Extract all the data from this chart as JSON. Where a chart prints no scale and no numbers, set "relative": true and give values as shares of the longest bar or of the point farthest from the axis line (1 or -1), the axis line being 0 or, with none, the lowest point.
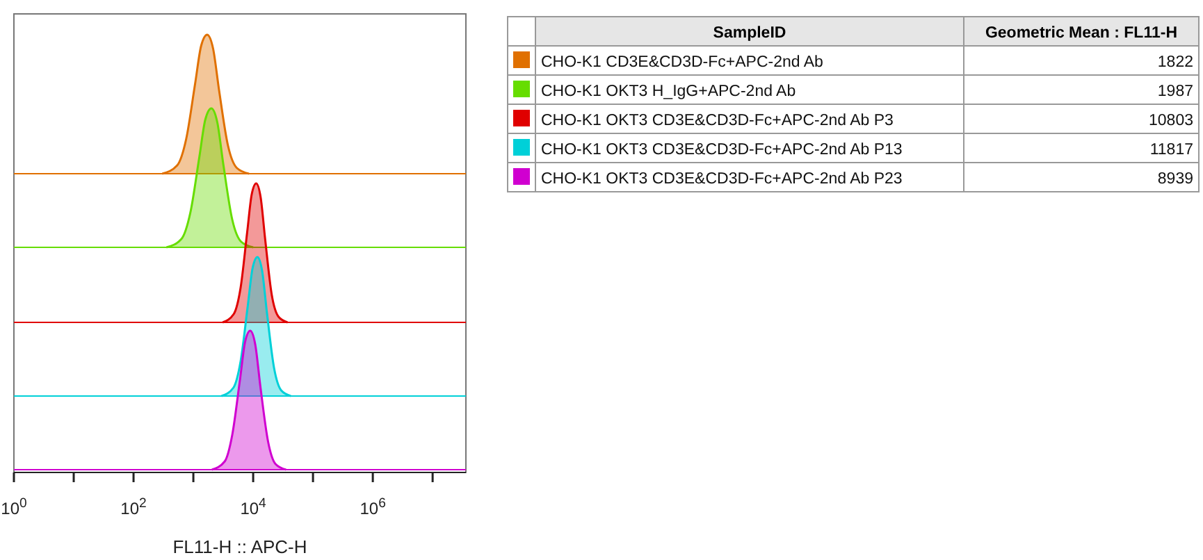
{
  "chart_data": [
    {
      "type": "area",
      "relative": true,
      "log": "x",
      "xlim": [
        1,
        36000000
      ],
      "tick_labels": false,
      "series": [
        {
          "color": "#e07000",
          "x": [
            302,
            537,
            759,
            1072,
            1349,
            1698,
            2138,
            2692,
            3802,
            5370,
            8511
          ],
          "values": [
            0,
            0.06,
            0.25,
            0.65,
            0.92,
            1,
            0.9,
            0.6,
            0.2,
            0.04,
            0
          ]
        }
      ]
    },
    {
      "type": "area",
      "relative": true,
      "log": "x",
      "xlim": [
        1,
        36000000
      ],
      "tick_labels": false,
      "series": [
        {
          "color": "#66dd00",
          "x": [
            355,
            631,
            891,
            1259,
            1585,
            1995,
            2512,
            3162,
            4467,
            6310,
            10000
          ],
          "values": [
            0,
            0.06,
            0.25,
            0.65,
            0.92,
            1,
            0.9,
            0.6,
            0.2,
            0.04,
            0
          ]
        }
      ]
    },
    {
      "type": "area",
      "relative": true,
      "log": "x",
      "xlim": [
        1,
        36000000
      ],
      "tick_labels": false,
      "series": [
        {
          "color": "#e00000",
          "x": [
            3090,
            4732,
            6166,
            7943,
            9441,
            11220,
            13335,
            15849,
            20417,
            26607,
            37584
          ],
          "values": [
            0,
            0.06,
            0.25,
            0.65,
            0.92,
            1,
            0.9,
            0.6,
            0.2,
            0.04,
            0
          ]
        }
      ]
    },
    {
      "type": "area",
      "relative": true,
      "log": "x",
      "xlim": [
        1,
        36000000
      ],
      "tick_labels": false,
      "series": [
        {
          "color": "#00d0d8",
          "x": [
            2951,
            4677,
            6166,
            8128,
            9772,
            11749,
            14125,
            16982,
            22387,
            29512,
            42658
          ],
          "values": [
            0,
            0.06,
            0.25,
            0.65,
            0.92,
            1,
            0.9,
            0.6,
            0.2,
            0.04,
            0
          ]
        }
      ]
    },
    {
      "type": "area",
      "relative": true,
      "log": "x",
      "xlim": [
        1,
        36000000
      ],
      "tick_labels": "x",
      "xlabel": "FL11-H :: APC-H",
      "xticks": [
        {
          "value": 1,
          "label": "10$^{0}$"
        },
        {
          "value": 10,
          "label": null
        },
        {
          "value": 100,
          "label": "10$^{2}$"
        },
        {
          "value": 1000,
          "label": null
        },
        {
          "value": 10000,
          "label": "10$^{4}$"
        },
        {
          "value": 100000,
          "label": null
        },
        {
          "value": 1000000,
          "label": "10$^{6}$"
        },
        {
          "value": 10000000,
          "label": null
        }
      ],
      "series": [
        {
          "color": "#d000d0",
          "x": [
            2042,
            3350,
            4467,
            6026,
            7328,
            8913,
            10839,
            13183,
            17783,
            23714,
            35481
          ],
          "values": [
            0,
            0.06,
            0.25,
            0.65,
            0.92,
            1,
            0.9,
            0.6,
            0.2,
            0.04,
            0
          ]
        }
      ]
    },
    {
      "type": "other",
      "xlabel": "SampleID",
      "ylabel": "Geometric Mean : FL11-H",
      "data_labels": true,
      "categories": [
        "CHO-K1 CD3E&CD3D-Fc+APC-2nd Ab",
        "CHO-K1 OKT3 H_IgG+APC-2nd Ab",
        "CHO-K1 OKT3 CD3E&CD3D-Fc+APC-2nd Ab P3",
        "CHO-K1 OKT3 CD3E&CD3D-Fc+APC-2nd Ab P13",
        "CHO-K1 OKT3 CD3E&CD3D-Fc+APC-2nd Ab P23"
      ],
      "values": [
        1822,
        1987,
        10803,
        11817,
        8939
      ],
      "colors": [
        "#e07000",
        "#66dd00",
        "#e00000",
        "#00d0d8",
        "#d000d0"
      ]
    }
  ]
}
